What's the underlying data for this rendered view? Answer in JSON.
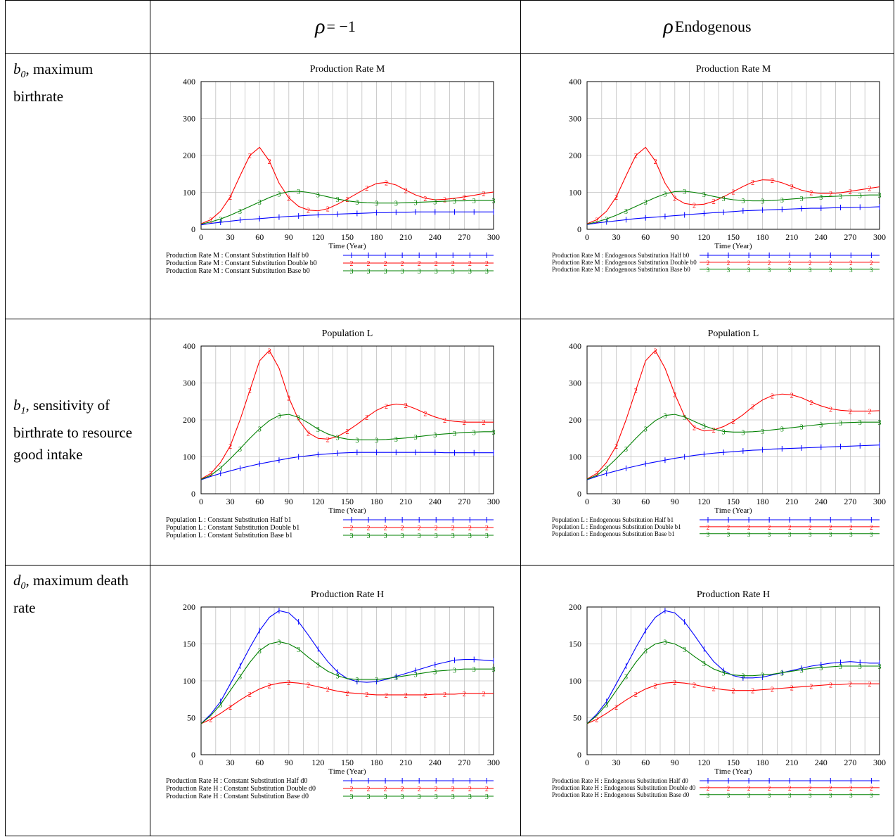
{
  "header": {
    "col1": "",
    "col2_sym": "ρ",
    "col2_rest": "= −1",
    "col3_sym": "ρ",
    "col3_rest": "Endogenous"
  },
  "rows": [
    {
      "param": "b0",
      "param_sub": "0",
      "param_base": "b",
      "desc": ", maximum birthrate"
    },
    {
      "param": "b1",
      "param_sub": "1",
      "param_base": "b",
      "desc": ", sensitivity of birthrate to resource good intake"
    },
    {
      "param": "d0",
      "param_sub": "0",
      "param_base": "d",
      "desc": ", maximum death rate"
    }
  ],
  "colors": {
    "series1": "#0000ff",
    "series2": "#ff0000",
    "series3": "#008000",
    "grid": "#c0c0c0"
  },
  "chart_data": [
    {
      "type": "line",
      "title": "Production Rate M",
      "xlabel": "Time (Year)",
      "ylabel": "",
      "xlim": [
        0,
        300
      ],
      "ylim": [
        0,
        400
      ],
      "xticks": [
        0,
        30,
        60,
        90,
        120,
        150,
        180,
        210,
        240,
        270,
        300
      ],
      "yticks": [
        0,
        100,
        200,
        300,
        400
      ],
      "x": [
        0,
        10,
        20,
        30,
        40,
        50,
        60,
        70,
        80,
        90,
        100,
        110,
        120,
        130,
        140,
        150,
        160,
        170,
        180,
        190,
        200,
        210,
        220,
        230,
        240,
        250,
        260,
        270,
        280,
        290,
        300
      ],
      "series": [
        {
          "name": "Production Rate M : Constant Substitution Half b0",
          "marker": "1",
          "values": [
            12,
            16,
            19,
            22,
            25,
            27,
            29,
            31,
            33,
            35,
            36,
            38,
            39,
            40,
            41,
            42,
            43,
            44,
            45,
            45,
            46,
            46,
            47,
            47,
            47,
            47,
            47,
            47,
            47,
            47,
            47
          ]
        },
        {
          "name": "Production Rate M : Constant Substitution Double b0",
          "marker": "2",
          "values": [
            15,
            26,
            49,
            88,
            145,
            200,
            222,
            185,
            125,
            85,
            62,
            52,
            50,
            56,
            68,
            82,
            97,
            112,
            124,
            127,
            120,
            106,
            93,
            84,
            80,
            81,
            84,
            88,
            92,
            97,
            101
          ]
        },
        {
          "name": "Production Rate M : Constant Substitution Base b0",
          "marker": "3",
          "values": [
            14,
            20,
            28,
            38,
            50,
            62,
            74,
            86,
            96,
            102,
            103,
            100,
            94,
            88,
            82,
            77,
            74,
            72,
            71,
            71,
            71,
            72,
            73,
            74,
            75,
            76,
            77,
            77,
            78,
            78,
            78
          ]
        }
      ]
    },
    {
      "type": "line",
      "title": "Production Rate M",
      "xlabel": "Time (Year)",
      "ylabel": "",
      "xlim": [
        0,
        300
      ],
      "ylim": [
        0,
        400
      ],
      "xticks": [
        0,
        30,
        60,
        90,
        120,
        150,
        180,
        210,
        240,
        270,
        300
      ],
      "yticks": [
        0,
        100,
        200,
        300,
        400
      ],
      "x": [
        0,
        10,
        20,
        30,
        40,
        50,
        60,
        70,
        80,
        90,
        100,
        110,
        120,
        130,
        140,
        150,
        160,
        170,
        180,
        190,
        200,
        210,
        220,
        230,
        240,
        250,
        260,
        270,
        280,
        290,
        300
      ],
      "series": [
        {
          "name": "Production Rate M : Endogenous Substitution Half b0",
          "marker": "1",
          "values": [
            13,
            17,
            20,
            23,
            26,
            29,
            31,
            33,
            35,
            37,
            39,
            41,
            43,
            45,
            46,
            48,
            50,
            51,
            52,
            53,
            54,
            55,
            56,
            57,
            57,
            58,
            59,
            59,
            60,
            60,
            61
          ]
        },
        {
          "name": "Production Rate M : Endogenous Substitution Double b0",
          "marker": "2",
          "values": [
            15,
            26,
            49,
            88,
            145,
            200,
            222,
            185,
            125,
            85,
            70,
            66,
            68,
            76,
            88,
            102,
            116,
            128,
            134,
            133,
            126,
            116,
            106,
            100,
            97,
            97,
            99,
            103,
            107,
            111,
            115
          ]
        },
        {
          "name": "Production Rate M : Endogenous Substitution Base b0",
          "marker": "3",
          "values": [
            14,
            20,
            28,
            38,
            50,
            62,
            74,
            86,
            96,
            102,
            103,
            100,
            95,
            89,
            84,
            80,
            78,
            77,
            77,
            78,
            80,
            82,
            84,
            86,
            88,
            89,
            90,
            91,
            92,
            93,
            93
          ]
        }
      ]
    },
    {
      "type": "line",
      "title": "Population L",
      "xlabel": "Time (Year)",
      "ylabel": "",
      "xlim": [
        0,
        300
      ],
      "ylim": [
        0,
        400
      ],
      "xticks": [
        0,
        30,
        60,
        90,
        120,
        150,
        180,
        210,
        240,
        270,
        300
      ],
      "yticks": [
        0,
        100,
        200,
        300,
        400
      ],
      "x": [
        0,
        10,
        20,
        30,
        40,
        50,
        60,
        70,
        80,
        90,
        100,
        110,
        120,
        130,
        140,
        150,
        160,
        170,
        180,
        190,
        200,
        210,
        220,
        230,
        240,
        250,
        260,
        270,
        280,
        290,
        300
      ],
      "series": [
        {
          "name": "Population L : Constant Substitution Half b1",
          "marker": "1",
          "values": [
            38,
            47,
            55,
            62,
            69,
            75,
            81,
            86,
            91,
            96,
            100,
            103,
            106,
            108,
            110,
            111,
            112,
            112,
            112,
            112,
            112,
            112,
            112,
            112,
            112,
            111,
            111,
            111,
            111,
            111,
            111
          ]
        },
        {
          "name": "Population L : Constant Substitution Double b1",
          "marker": "2",
          "values": [
            40,
            55,
            85,
            130,
            200,
            280,
            360,
            388,
            340,
            260,
            200,
            165,
            150,
            148,
            155,
            170,
            188,
            208,
            226,
            238,
            243,
            240,
            230,
            218,
            208,
            200,
            196,
            194,
            194,
            194,
            194
          ]
        },
        {
          "name": "Population L : Constant Substitution Base b1",
          "marker": "3",
          "values": [
            39,
            50,
            70,
            95,
            122,
            150,
            176,
            198,
            212,
            215,
            207,
            192,
            175,
            162,
            153,
            148,
            146,
            146,
            146,
            147,
            149,
            151,
            154,
            157,
            160,
            162,
            164,
            166,
            167,
            168,
            168
          ]
        }
      ]
    },
    {
      "type": "line",
      "title": "Population L",
      "xlabel": "Time (Year)",
      "ylabel": "",
      "xlim": [
        0,
        300
      ],
      "ylim": [
        0,
        400
      ],
      "xticks": [
        0,
        30,
        60,
        90,
        120,
        150,
        180,
        210,
        240,
        270,
        300
      ],
      "yticks": [
        0,
        100,
        200,
        300,
        400
      ],
      "x": [
        0,
        10,
        20,
        30,
        40,
        50,
        60,
        70,
        80,
        90,
        100,
        110,
        120,
        130,
        140,
        150,
        160,
        170,
        180,
        190,
        200,
        210,
        220,
        230,
        240,
        250,
        260,
        270,
        280,
        290,
        300
      ],
      "series": [
        {
          "name": "Population L : Endogenous Substitution Half b1",
          "marker": "1",
          "values": [
            38,
            47,
            55,
            62,
            69,
            75,
            81,
            86,
            91,
            96,
            100,
            104,
            107,
            110,
            112,
            114,
            116,
            118,
            119,
            121,
            122,
            123,
            124,
            125,
            126,
            127,
            128,
            129,
            130,
            131,
            132
          ]
        },
        {
          "name": "Population L : Endogenous Substitution Double b1",
          "marker": "2",
          "values": [
            40,
            55,
            85,
            130,
            200,
            280,
            360,
            388,
            340,
            270,
            210,
            180,
            170,
            173,
            182,
            196,
            214,
            236,
            254,
            266,
            270,
            268,
            260,
            248,
            238,
            230,
            226,
            224,
            224,
            224,
            225
          ]
        },
        {
          "name": "Population L : Endogenous Substitution Base b1",
          "marker": "3",
          "values": [
            39,
            50,
            70,
            95,
            122,
            150,
            176,
            198,
            212,
            215,
            208,
            196,
            184,
            175,
            169,
            167,
            167,
            168,
            170,
            173,
            176,
            179,
            182,
            185,
            188,
            190,
            192,
            193,
            194,
            194,
            194
          ]
        }
      ]
    },
    {
      "type": "line",
      "title": "Production Rate H",
      "xlabel": "Time (Year)",
      "ylabel": "",
      "xlim": [
        0,
        300
      ],
      "ylim": [
        0,
        200
      ],
      "xticks": [
        0,
        30,
        60,
        90,
        120,
        150,
        180,
        210,
        240,
        270,
        300
      ],
      "yticks": [
        0,
        50,
        100,
        150,
        200
      ],
      "x": [
        0,
        10,
        20,
        30,
        40,
        50,
        60,
        70,
        80,
        90,
        100,
        110,
        120,
        130,
        140,
        150,
        160,
        170,
        180,
        190,
        200,
        210,
        220,
        230,
        240,
        250,
        260,
        270,
        280,
        290,
        300
      ],
      "series": [
        {
          "name": "Production Rate H : Constant Substitution Half d0",
          "marker": "1",
          "values": [
            42,
            55,
            72,
            96,
            120,
            145,
            168,
            186,
            195,
            192,
            180,
            162,
            143,
            126,
            112,
            103,
            99,
            98,
            99,
            102,
            106,
            110,
            114,
            118,
            122,
            125,
            128,
            129,
            129,
            128,
            127
          ]
        },
        {
          "name": "Production Rate H : Constant Substitution Double d0",
          "marker": "2",
          "values": [
            42,
            48,
            56,
            65,
            74,
            82,
            89,
            94,
            97,
            98,
            97,
            95,
            92,
            89,
            86,
            84,
            83,
            82,
            81,
            81,
            81,
            81,
            81,
            81,
            82,
            82,
            82,
            83,
            83,
            83,
            83
          ]
        },
        {
          "name": "Production Rate H : Constant Substitution Base d0",
          "marker": "3",
          "values": [
            42,
            53,
            68,
            87,
            106,
            125,
            141,
            150,
            153,
            150,
            143,
            132,
            122,
            113,
            107,
            103,
            102,
            102,
            102,
            103,
            105,
            107,
            109,
            111,
            113,
            114,
            115,
            116,
            116,
            116,
            116
          ]
        }
      ]
    },
    {
      "type": "line",
      "title": "Production Rate H",
      "xlabel": "Time (Year)",
      "ylabel": "",
      "xlim": [
        0,
        300
      ],
      "ylim": [
        0,
        200
      ],
      "xticks": [
        0,
        30,
        60,
        90,
        120,
        150,
        180,
        210,
        240,
        270,
        300
      ],
      "yticks": [
        0,
        50,
        100,
        150,
        200
      ],
      "x": [
        0,
        10,
        20,
        30,
        40,
        50,
        60,
        70,
        80,
        90,
        100,
        110,
        120,
        130,
        140,
        150,
        160,
        170,
        180,
        190,
        200,
        210,
        220,
        230,
        240,
        250,
        260,
        270,
        280,
        290,
        300
      ],
      "series": [
        {
          "name": "Production Rate H : Endogenous Substitution Half d0",
          "marker": "1",
          "values": [
            42,
            55,
            72,
            96,
            120,
            145,
            168,
            186,
            195,
            192,
            180,
            162,
            143,
            126,
            114,
            107,
            104,
            104,
            105,
            108,
            111,
            114,
            117,
            120,
            122,
            124,
            125,
            126,
            125,
            124,
            124
          ]
        },
        {
          "name": "Production Rate H : Endogenous Substitution Double d0",
          "marker": "2",
          "values": [
            42,
            48,
            56,
            65,
            74,
            82,
            89,
            94,
            97,
            98,
            97,
            95,
            92,
            90,
            88,
            87,
            87,
            87,
            88,
            89,
            90,
            91,
            92,
            93,
            94,
            95,
            95,
            96,
            96,
            96,
            96
          ]
        },
        {
          "name": "Production Rate H : Endogenous Substitution Base d0",
          "marker": "3",
          "values": [
            42,
            53,
            68,
            87,
            106,
            125,
            141,
            150,
            153,
            150,
            143,
            133,
            124,
            116,
            111,
            108,
            107,
            107,
            108,
            109,
            111,
            113,
            115,
            117,
            118,
            119,
            120,
            120,
            120,
            120,
            120
          ]
        }
      ]
    }
  ]
}
